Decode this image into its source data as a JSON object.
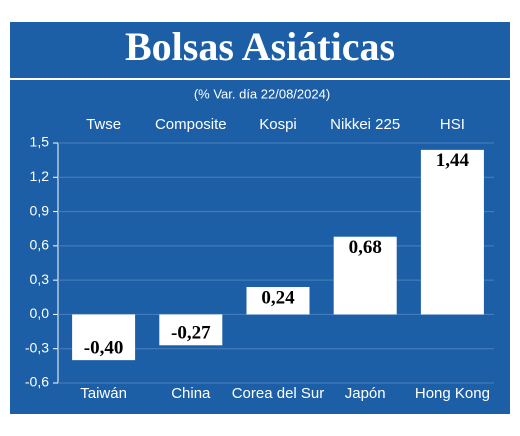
{
  "chart_data": {
    "type": "bar",
    "title": "Bolsas Asiáticas",
    "subtitle": "(% Var. día 22/08/2024)",
    "indices": [
      "Twse",
      "Composite",
      "Kospi",
      "Nikkei 225",
      "HSI"
    ],
    "categories": [
      "Taiwán",
      "China",
      "Corea del Sur",
      "Japón",
      "Hong Kong"
    ],
    "values": [
      -0.4,
      -0.27,
      0.24,
      0.68,
      1.44
    ],
    "value_labels": [
      "-0,40",
      "-0,27",
      "0,24",
      "0,68",
      "1,44"
    ],
    "color": "#ffffff",
    "ylim": [
      -0.6,
      1.5
    ],
    "yticks": [
      {
        "value": -0.6,
        "label": "-0,6"
      },
      {
        "value": -0.3,
        "label": "-0,3"
      },
      {
        "value": 0,
        "label": "0,0"
      },
      {
        "value": 0.3,
        "label": "0,3"
      },
      {
        "value": 0.6,
        "label": "0,6"
      },
      {
        "value": 0.9,
        "label": "0,9"
      },
      {
        "value": 1.2,
        "label": "1,2"
      },
      {
        "value": 1.5,
        "label": "1,5"
      }
    ],
    "grid": true
  }
}
